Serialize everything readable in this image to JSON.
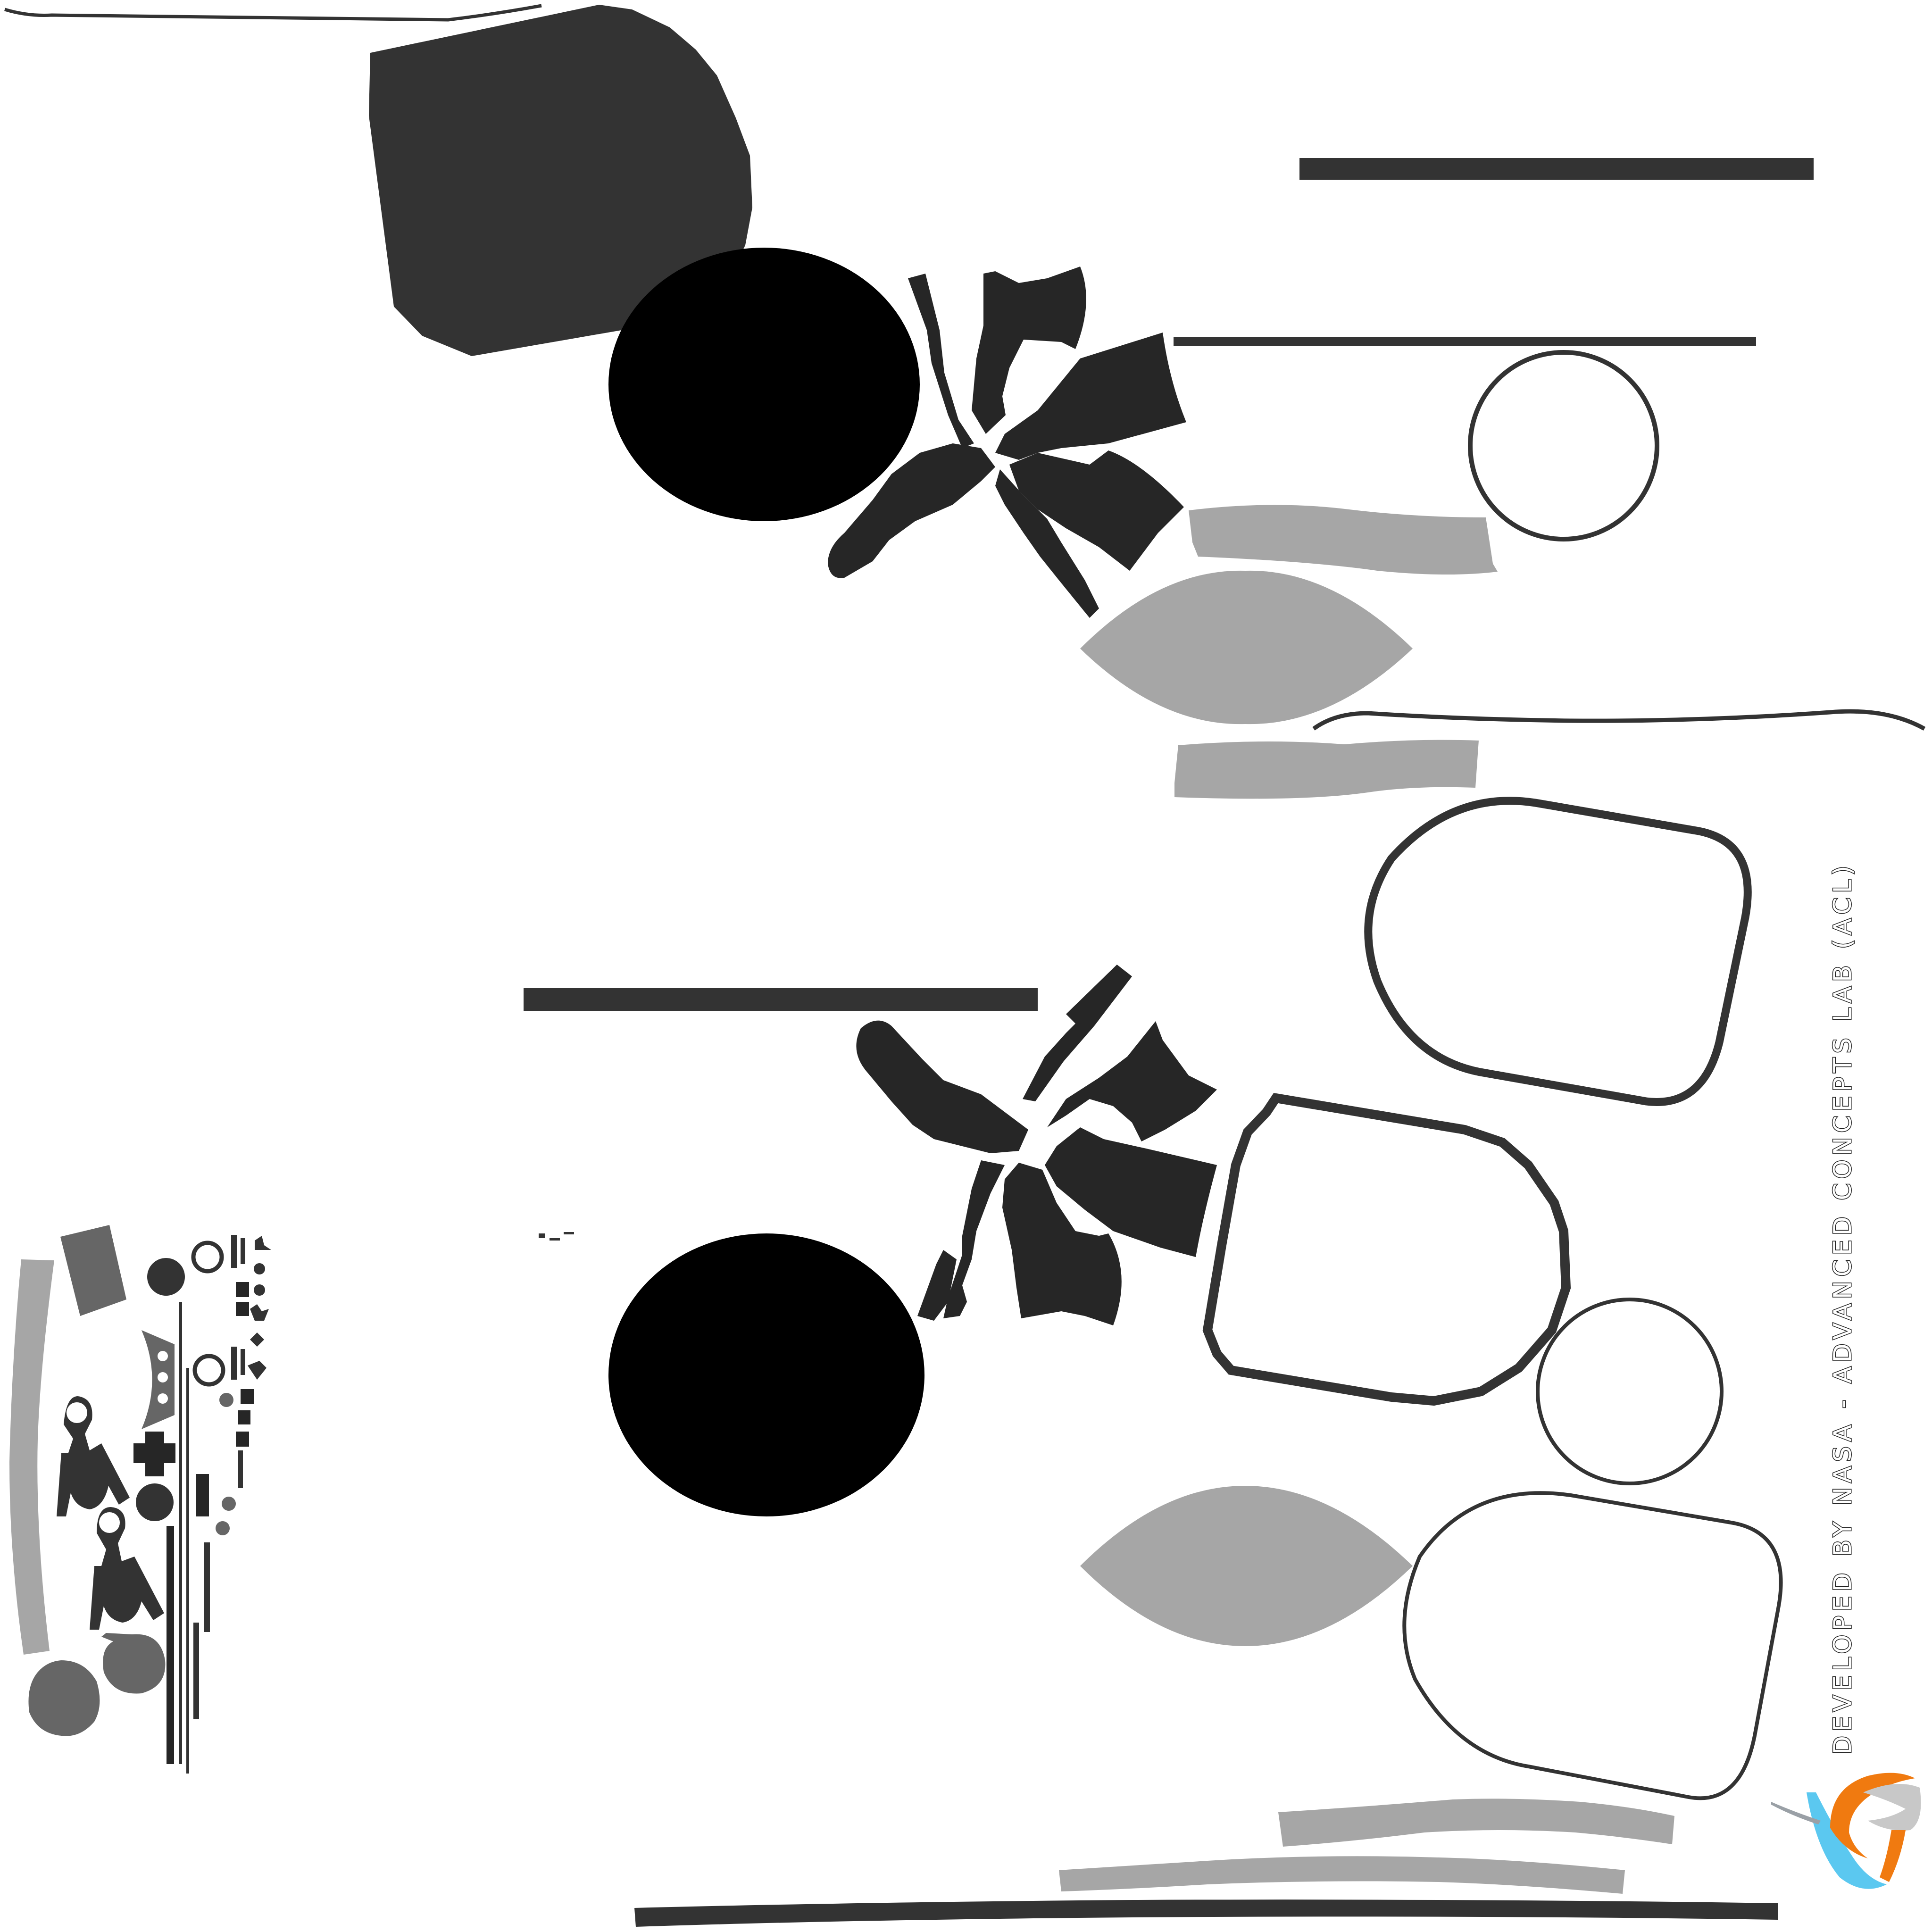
{
  "texture_sheet": {
    "credit_text": "DEVELOPED BY NASA - ADVANCED CONCEPTS LAB (ACL)",
    "logo_name": "acl-logo",
    "colors": {
      "background": "#ffffff",
      "dark_gray": "#333333",
      "charcoal": "#262626",
      "black": "#000000",
      "light_gray": "#a6a6a6",
      "mid_gray": "#666666",
      "logo_orange": "#f07a10",
      "logo_blue": "#5bc8f0",
      "logo_silver": "#c8c8c8"
    }
  }
}
